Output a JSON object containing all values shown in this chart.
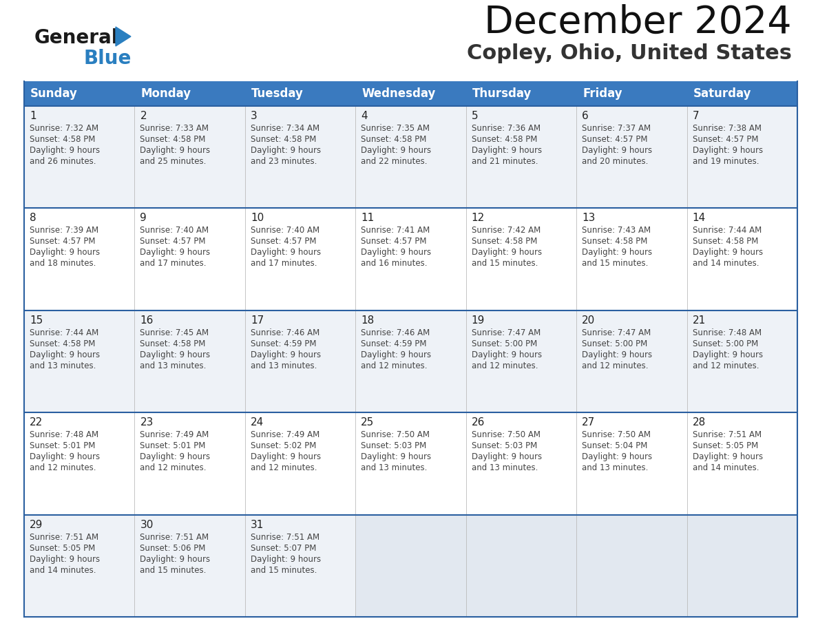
{
  "title": "December 2024",
  "subtitle": "Copley, Ohio, United States",
  "header_bg": "#3a7abf",
  "header_text": "#ffffff",
  "row_bg_light": "#eef2f7",
  "row_bg_white": "#ffffff",
  "last_row_bg": "#eef2f7",
  "last_row_empty_bg": "#e2e8f0",
  "border_color": "#2a5fa0",
  "cell_border_color": "#aaaaaa",
  "days_of_week": [
    "Sunday",
    "Monday",
    "Tuesday",
    "Wednesday",
    "Thursday",
    "Friday",
    "Saturday"
  ],
  "calendar": [
    [
      {
        "day": 1,
        "sunrise": "7:32 AM",
        "sunset": "4:58 PM",
        "daylight": "9 hours and 26 minutes."
      },
      {
        "day": 2,
        "sunrise": "7:33 AM",
        "sunset": "4:58 PM",
        "daylight": "9 hours and 25 minutes."
      },
      {
        "day": 3,
        "sunrise": "7:34 AM",
        "sunset": "4:58 PM",
        "daylight": "9 hours and 23 minutes."
      },
      {
        "day": 4,
        "sunrise": "7:35 AM",
        "sunset": "4:58 PM",
        "daylight": "9 hours and 22 minutes."
      },
      {
        "day": 5,
        "sunrise": "7:36 AM",
        "sunset": "4:58 PM",
        "daylight": "9 hours and 21 minutes."
      },
      {
        "day": 6,
        "sunrise": "7:37 AM",
        "sunset": "4:57 PM",
        "daylight": "9 hours and 20 minutes."
      },
      {
        "day": 7,
        "sunrise": "7:38 AM",
        "sunset": "4:57 PM",
        "daylight": "9 hours and 19 minutes."
      }
    ],
    [
      {
        "day": 8,
        "sunrise": "7:39 AM",
        "sunset": "4:57 PM",
        "daylight": "9 hours and 18 minutes."
      },
      {
        "day": 9,
        "sunrise": "7:40 AM",
        "sunset": "4:57 PM",
        "daylight": "9 hours and 17 minutes."
      },
      {
        "day": 10,
        "sunrise": "7:40 AM",
        "sunset": "4:57 PM",
        "daylight": "9 hours and 17 minutes."
      },
      {
        "day": 11,
        "sunrise": "7:41 AM",
        "sunset": "4:57 PM",
        "daylight": "9 hours and 16 minutes."
      },
      {
        "day": 12,
        "sunrise": "7:42 AM",
        "sunset": "4:58 PM",
        "daylight": "9 hours and 15 minutes."
      },
      {
        "day": 13,
        "sunrise": "7:43 AM",
        "sunset": "4:58 PM",
        "daylight": "9 hours and 15 minutes."
      },
      {
        "day": 14,
        "sunrise": "7:44 AM",
        "sunset": "4:58 PM",
        "daylight": "9 hours and 14 minutes."
      }
    ],
    [
      {
        "day": 15,
        "sunrise": "7:44 AM",
        "sunset": "4:58 PM",
        "daylight": "9 hours and 13 minutes."
      },
      {
        "day": 16,
        "sunrise": "7:45 AM",
        "sunset": "4:58 PM",
        "daylight": "9 hours and 13 minutes."
      },
      {
        "day": 17,
        "sunrise": "7:46 AM",
        "sunset": "4:59 PM",
        "daylight": "9 hours and 13 minutes."
      },
      {
        "day": 18,
        "sunrise": "7:46 AM",
        "sunset": "4:59 PM",
        "daylight": "9 hours and 12 minutes."
      },
      {
        "day": 19,
        "sunrise": "7:47 AM",
        "sunset": "5:00 PM",
        "daylight": "9 hours and 12 minutes."
      },
      {
        "day": 20,
        "sunrise": "7:47 AM",
        "sunset": "5:00 PM",
        "daylight": "9 hours and 12 minutes."
      },
      {
        "day": 21,
        "sunrise": "7:48 AM",
        "sunset": "5:00 PM",
        "daylight": "9 hours and 12 minutes."
      }
    ],
    [
      {
        "day": 22,
        "sunrise": "7:48 AM",
        "sunset": "5:01 PM",
        "daylight": "9 hours and 12 minutes."
      },
      {
        "day": 23,
        "sunrise": "7:49 AM",
        "sunset": "5:01 PM",
        "daylight": "9 hours and 12 minutes."
      },
      {
        "day": 24,
        "sunrise": "7:49 AM",
        "sunset": "5:02 PM",
        "daylight": "9 hours and 12 minutes."
      },
      {
        "day": 25,
        "sunrise": "7:50 AM",
        "sunset": "5:03 PM",
        "daylight": "9 hours and 13 minutes."
      },
      {
        "day": 26,
        "sunrise": "7:50 AM",
        "sunset": "5:03 PM",
        "daylight": "9 hours and 13 minutes."
      },
      {
        "day": 27,
        "sunrise": "7:50 AM",
        "sunset": "5:04 PM",
        "daylight": "9 hours and 13 minutes."
      },
      {
        "day": 28,
        "sunrise": "7:51 AM",
        "sunset": "5:05 PM",
        "daylight": "9 hours and 14 minutes."
      }
    ],
    [
      {
        "day": 29,
        "sunrise": "7:51 AM",
        "sunset": "5:05 PM",
        "daylight": "9 hours and 14 minutes."
      },
      {
        "day": 30,
        "sunrise": "7:51 AM",
        "sunset": "5:06 PM",
        "daylight": "9 hours and 15 minutes."
      },
      {
        "day": 31,
        "sunrise": "7:51 AM",
        "sunset": "5:07 PM",
        "daylight": "9 hours and 15 minutes."
      },
      null,
      null,
      null,
      null
    ]
  ],
  "logo_general_color": "#1a1a1a",
  "logo_blue_color": "#2a7fc0",
  "logo_triangle_color": "#2a7fc0",
  "title_fontsize": 40,
  "subtitle_fontsize": 22,
  "header_fontsize": 12,
  "day_num_fontsize": 11,
  "cell_text_fontsize": 8.5
}
